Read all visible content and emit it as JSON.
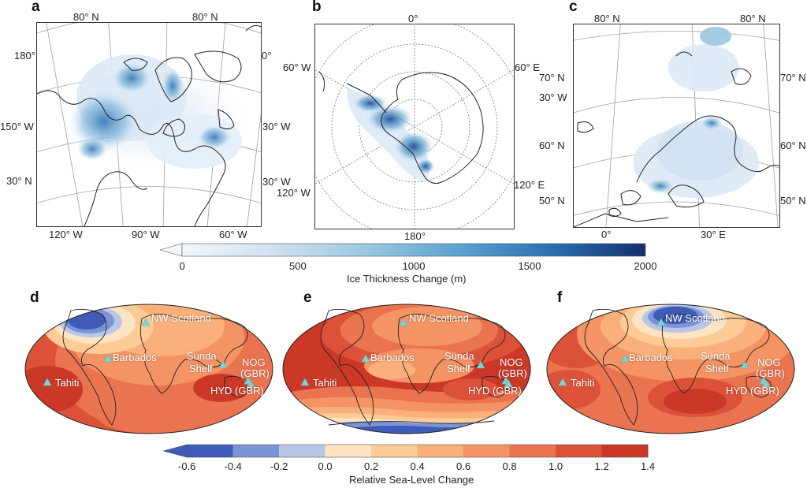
{
  "panels": {
    "a": {
      "label": "a",
      "lat_ticks": [
        "80° N",
        "80° N",
        "30° N"
      ],
      "lon_ticks": [
        "180°",
        "0°",
        "150° W",
        "30° W",
        "30° W",
        "120° W",
        "90° W",
        "60° W"
      ]
    },
    "b": {
      "label": "b",
      "lon_ticks": [
        "0°",
        "60° W",
        "60° E",
        "120° W",
        "120° E",
        "180°"
      ]
    },
    "c": {
      "label": "c",
      "lat_ticks": [
        "80° N",
        "80° N",
        "70° N",
        "70° N",
        "60° N",
        "60° N",
        "50° N",
        "50° N"
      ],
      "lon_ticks": [
        "30° W",
        "0°",
        "30° E"
      ]
    },
    "d": {
      "label": "d"
    },
    "e": {
      "label": "e"
    },
    "f": {
      "label": "f"
    }
  },
  "ice_colorbar": {
    "title": "Ice Thickness Change (m)",
    "ticks": [
      "0",
      "500",
      "1000",
      "1500",
      "2000"
    ],
    "range": [
      0,
      2000
    ],
    "colors": [
      "#f3f7fc",
      "#cfe1f2",
      "#9ac8e0",
      "#5aa2cf",
      "#2a6fb0",
      "#14306b"
    ]
  },
  "sea_level_colorbar": {
    "title": "Relative Sea-Level Change",
    "ticks": [
      "-0.6",
      "-0.4",
      "-0.2",
      "0.0",
      "0.2",
      "0.4",
      "0.6",
      "0.8",
      "1.0",
      "1.2",
      "1.4"
    ],
    "range": [
      -0.6,
      1.4
    ],
    "colors": [
      "#3f5ab8",
      "#7d94d4",
      "#b9c6e8",
      "#fde5c3",
      "#fccb96",
      "#f9b07a",
      "#f49363",
      "#ea7350",
      "#dc5238",
      "#cc3828"
    ]
  },
  "sites": {
    "nw_scotland": "NW Scotland",
    "barbados": "Barbados",
    "sunda_1": "Sunda",
    "sunda_2": "Shelf",
    "nog_1": "NOG",
    "nog_2": "(GBR)",
    "hyd": "HYD (GBR)",
    "tahiti": "Tahiti"
  },
  "colors": {
    "site_marker": "#7fd3d6",
    "land_outline": "#222222",
    "graticule": "#9a9a9a"
  }
}
